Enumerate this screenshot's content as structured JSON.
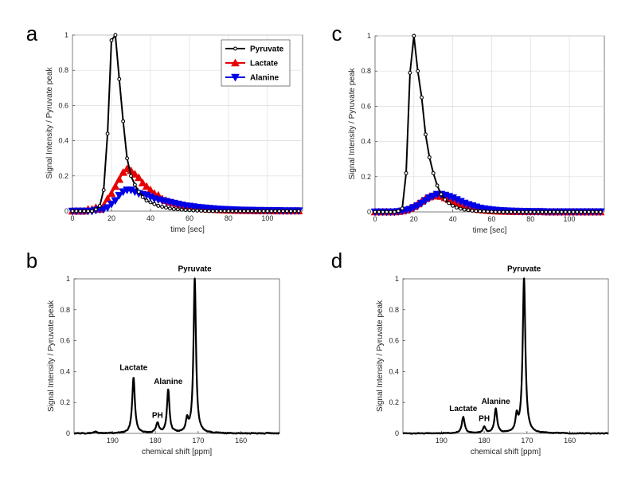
{
  "chart_data": [
    {
      "panel": "a",
      "type": "line",
      "xlabel": "time [sec]",
      "ylabel": "Signal Intensity / Pyruvate peak",
      "xlim": [
        0,
        118
      ],
      "ylim": [
        0,
        1
      ],
      "xticks": [
        0,
        20,
        40,
        60,
        80,
        100
      ],
      "yticks": [
        0,
        0.2,
        0.4,
        0.6,
        0.8,
        1
      ],
      "grid": true,
      "legend": {
        "position": "top-right",
        "entries": [
          "Pyruvate",
          "Lactate",
          "Alanine"
        ]
      },
      "series": [
        {
          "name": "Pyruvate",
          "color": "#000000",
          "marker": "circle",
          "x": [
            0,
            2,
            4,
            6,
            8,
            10,
            12,
            14,
            16,
            18,
            20,
            22,
            24,
            26,
            28,
            30,
            32,
            34,
            36,
            38,
            40,
            42,
            44,
            46,
            48,
            50,
            52,
            54,
            56,
            58,
            60,
            62,
            64,
            66,
            68,
            70,
            72,
            74,
            76,
            78,
            80,
            82,
            84,
            86,
            88,
            90,
            92,
            94,
            96,
            98,
            100,
            102,
            104,
            106,
            108,
            110,
            112,
            114,
            116
          ],
          "y": [
            0,
            0,
            0,
            0,
            0,
            0,
            0.01,
            0.03,
            0.12,
            0.44,
            0.97,
            1.0,
            0.75,
            0.51,
            0.3,
            0.2,
            0.15,
            0.11,
            0.08,
            0.06,
            0.05,
            0.04,
            0.03,
            0.025,
            0.02,
            0.015,
            0.012,
            0.01,
            0.008,
            0.006,
            0.005,
            0.004,
            0.003,
            0.002,
            0.001,
            0,
            0,
            0,
            0,
            0,
            0,
            0,
            0,
            0,
            0,
            0,
            0,
            0,
            0,
            0,
            0,
            0,
            0,
            0,
            0,
            0,
            0,
            0,
            0
          ]
        },
        {
          "name": "Lactate",
          "color": "#e60000",
          "marker": "triangle-up",
          "x": [
            0,
            2,
            4,
            6,
            8,
            10,
            12,
            14,
            16,
            18,
            20,
            22,
            24,
            26,
            28,
            30,
            32,
            34,
            36,
            38,
            40,
            42,
            44,
            46,
            48,
            50,
            52,
            54,
            56,
            58,
            60,
            62,
            64,
            66,
            68,
            70,
            72,
            74,
            76,
            78,
            80,
            82,
            84,
            86,
            88,
            90,
            92,
            94,
            96,
            98,
            100,
            102,
            104,
            106,
            108,
            110,
            112,
            114,
            116
          ],
          "y": [
            0,
            0,
            0,
            0,
            0.01,
            0.01,
            0.02,
            0.01,
            0.03,
            0.07,
            0.1,
            0.14,
            0.18,
            0.22,
            0.24,
            0.23,
            0.21,
            0.19,
            0.16,
            0.14,
            0.12,
            0.1,
            0.09,
            0.07,
            0.06,
            0.05,
            0.045,
            0.04,
            0.035,
            0.03,
            0.025,
            0.02,
            0.018,
            0.015,
            0.013,
            0.011,
            0.01,
            0.008,
            0.007,
            0.006,
            0.005,
            0.005,
            0.004,
            0.004,
            0.003,
            0.003,
            0.003,
            0.002,
            0.002,
            0.002,
            0.002,
            0.002,
            0.001,
            0.001,
            0.001,
            0.001,
            0.001,
            0.001,
            0.001
          ]
        },
        {
          "name": "Alanine",
          "color": "#0000e6",
          "marker": "triangle-down",
          "x": [
            0,
            2,
            4,
            6,
            8,
            10,
            12,
            14,
            16,
            18,
            20,
            22,
            24,
            26,
            28,
            30,
            32,
            34,
            36,
            38,
            40,
            42,
            44,
            46,
            48,
            50,
            52,
            54,
            56,
            58,
            60,
            62,
            64,
            66,
            68,
            70,
            72,
            74,
            76,
            78,
            80,
            82,
            84,
            86,
            88,
            90,
            92,
            94,
            96,
            98,
            100,
            102,
            104,
            106,
            108,
            110,
            112,
            114,
            116
          ],
          "y": [
            0,
            0,
            0,
            0,
            0,
            0,
            0.005,
            0.01,
            0.01,
            0.02,
            0.04,
            0.06,
            0.09,
            0.11,
            0.12,
            0.12,
            0.11,
            0.1,
            0.095,
            0.09,
            0.08,
            0.07,
            0.065,
            0.06,
            0.055,
            0.05,
            0.045,
            0.04,
            0.035,
            0.03,
            0.028,
            0.025,
            0.022,
            0.02,
            0.018,
            0.016,
            0.014,
            0.012,
            0.011,
            0.01,
            0.009,
            0.008,
            0.007,
            0.006,
            0.006,
            0.005,
            0.005,
            0.004,
            0.004,
            0.004,
            0.003,
            0.003,
            0.003,
            0.003,
            0.002,
            0.002,
            0.002,
            0.002,
            0.002
          ]
        }
      ]
    },
    {
      "panel": "b",
      "type": "line",
      "xlabel": "chemical shift [ppm]",
      "ylabel": "Signal Intensity / Pyruvate peak",
      "xlim": [
        199,
        151
      ],
      "ylim": [
        0,
        1
      ],
      "xticks": [
        190,
        180,
        170,
        160
      ],
      "yticks": [
        0,
        0.2,
        0.4,
        0.6,
        0.8,
        1
      ],
      "grid": false,
      "baseline_noise": 0.008,
      "peaks": [
        {
          "ppm": 194.0,
          "height": 0.012,
          "width": 0.35
        },
        {
          "ppm": 185.1,
          "height": 0.36,
          "width": 0.38
        },
        {
          "ppm": 179.5,
          "height": 0.065,
          "width": 0.4
        },
        {
          "ppm": 177.0,
          "height": 0.28,
          "width": 0.35
        },
        {
          "ppm": 172.6,
          "height": 0.08,
          "width": 0.35
        },
        {
          "ppm": 170.8,
          "height": 1.0,
          "width": 0.35
        }
      ],
      "annotations": [
        {
          "text": "Lactate",
          "ppm": 185.1,
          "y": 0.41
        },
        {
          "text": "PH",
          "ppm": 179.5,
          "y": 0.1
        },
        {
          "text": "Alanine",
          "ppm": 177.0,
          "y": 0.32
        },
        {
          "text": "Pyruvate",
          "ppm": 170.8,
          "y": 1.05
        }
      ]
    },
    {
      "panel": "c",
      "type": "line",
      "xlabel": "time [sec]",
      "ylabel": "Signal Intensity / Pyruvate peak",
      "xlim": [
        0,
        118
      ],
      "ylim": [
        0,
        1
      ],
      "xticks": [
        0,
        20,
        40,
        60,
        80,
        100
      ],
      "yticks": [
        0,
        0.2,
        0.4,
        0.6,
        0.8,
        1
      ],
      "grid": true,
      "series": [
        {
          "name": "Pyruvate",
          "color": "#000000",
          "marker": "circle",
          "x": [
            0,
            2,
            4,
            6,
            8,
            10,
            12,
            14,
            16,
            18,
            20,
            22,
            24,
            26,
            28,
            30,
            32,
            34,
            36,
            38,
            40,
            42,
            44,
            46,
            48,
            50,
            52,
            54,
            56,
            58,
            60,
            62,
            64,
            66,
            68,
            70,
            72,
            74,
            76,
            78,
            80,
            82,
            84,
            86,
            88,
            90,
            92,
            94,
            96,
            98,
            100,
            102,
            104,
            106,
            108,
            110,
            112,
            114,
            116
          ],
          "y": [
            0,
            0,
            0,
            0,
            0,
            0,
            0.005,
            0.02,
            0.22,
            0.79,
            1.0,
            0.8,
            0.65,
            0.44,
            0.31,
            0.22,
            0.15,
            0.1,
            0.07,
            0.05,
            0.035,
            0.025,
            0.018,
            0.013,
            0.01,
            0.007,
            0.005,
            0.004,
            0.003,
            0.002,
            0.001,
            0,
            0,
            0,
            0,
            0,
            0,
            0,
            0,
            0,
            0,
            0,
            0,
            0,
            0,
            0,
            0,
            0,
            0,
            0,
            0,
            0,
            0,
            0,
            0,
            0,
            0,
            0,
            0
          ]
        },
        {
          "name": "Lactate",
          "color": "#e60000",
          "marker": "triangle-up",
          "x": [
            0,
            2,
            4,
            6,
            8,
            10,
            12,
            14,
            16,
            18,
            20,
            22,
            24,
            26,
            28,
            30,
            32,
            34,
            36,
            38,
            40,
            42,
            44,
            46,
            48,
            50,
            52,
            54,
            56,
            58,
            60,
            62,
            64,
            66,
            68,
            70,
            72,
            74,
            76,
            78,
            80,
            82,
            84,
            86,
            88,
            90,
            92,
            94,
            96,
            98,
            100,
            102,
            104,
            106,
            108,
            110,
            112,
            114,
            116
          ],
          "y": [
            0,
            0,
            0,
            0,
            0,
            0,
            0.002,
            0.005,
            0.01,
            0.02,
            0.03,
            0.045,
            0.06,
            0.075,
            0.085,
            0.09,
            0.092,
            0.088,
            0.08,
            0.07,
            0.06,
            0.05,
            0.04,
            0.032,
            0.025,
            0.02,
            0.016,
            0.013,
            0.01,
            0.008,
            0.006,
            0.005,
            0.004,
            0.003,
            0.003,
            0.002,
            0.002,
            0.002,
            0.001,
            0.001,
            0.001,
            0.001,
            0.001,
            0.001,
            0,
            0,
            0,
            0,
            0,
            0,
            0,
            0,
            0,
            0,
            0,
            0,
            0,
            0,
            0
          ]
        },
        {
          "name": "Alanine",
          "color": "#0000e6",
          "marker": "triangle-down",
          "x": [
            0,
            2,
            4,
            6,
            8,
            10,
            12,
            14,
            16,
            18,
            20,
            22,
            24,
            26,
            28,
            30,
            32,
            34,
            36,
            38,
            40,
            42,
            44,
            46,
            48,
            50,
            52,
            54,
            56,
            58,
            60,
            62,
            64,
            66,
            68,
            70,
            72,
            74,
            76,
            78,
            80,
            82,
            84,
            86,
            88,
            90,
            92,
            94,
            96,
            98,
            100,
            102,
            104,
            106,
            108,
            110,
            112,
            114,
            116
          ],
          "y": [
            0,
            0,
            0,
            0,
            0,
            0,
            0.002,
            0.005,
            0.01,
            0.015,
            0.025,
            0.035,
            0.05,
            0.065,
            0.08,
            0.09,
            0.1,
            0.1,
            0.095,
            0.088,
            0.08,
            0.07,
            0.06,
            0.05,
            0.042,
            0.035,
            0.028,
            0.022,
            0.018,
            0.015,
            0.012,
            0.01,
            0.008,
            0.007,
            0.006,
            0.005,
            0.004,
            0.004,
            0.003,
            0.003,
            0.002,
            0.002,
            0.002,
            0.002,
            0.001,
            0.001,
            0.001,
            0.001,
            0.001,
            0.001,
            0.001,
            0.001,
            0.001,
            0.001,
            0.001,
            0.001,
            0.001,
            0.001,
            0.001
          ]
        }
      ]
    },
    {
      "panel": "d",
      "type": "line",
      "xlabel": "chemical shift [ppm]",
      "ylabel": "Signal Intensity / Pyruvate peak",
      "xlim": [
        199,
        151
      ],
      "ylim": [
        0,
        1
      ],
      "xticks": [
        190,
        180,
        170,
        160
      ],
      "yticks": [
        0,
        0.2,
        0.4,
        0.6,
        0.8,
        1
      ],
      "grid": false,
      "baseline_noise": 0.006,
      "peaks": [
        {
          "ppm": 184.9,
          "height": 0.105,
          "width": 0.4
        },
        {
          "ppm": 180.0,
          "height": 0.04,
          "width": 0.4
        },
        {
          "ppm": 177.3,
          "height": 0.155,
          "width": 0.38
        },
        {
          "ppm": 172.4,
          "height": 0.1,
          "width": 0.35
        },
        {
          "ppm": 170.7,
          "height": 1.0,
          "width": 0.38
        }
      ],
      "annotations": [
        {
          "text": "Lactate",
          "ppm": 184.9,
          "y": 0.145
        },
        {
          "text": "PH",
          "ppm": 180.0,
          "y": 0.08
        },
        {
          "text": "Alanine",
          "ppm": 177.3,
          "y": 0.19
        },
        {
          "text": "Pyruvate",
          "ppm": 170.7,
          "y": 1.05
        }
      ]
    }
  ]
}
